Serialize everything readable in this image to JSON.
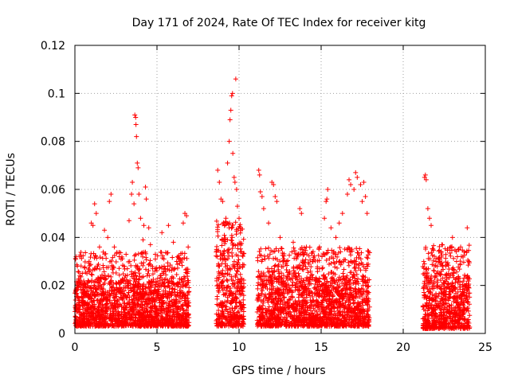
{
  "chart_data": {
    "type": "scatter",
    "title": "Day 171 of 2024, Rate Of TEC Index for receiver kitg",
    "xlabel": "GPS time / hours",
    "ylabel": "ROTI / TECUs",
    "xlim": [
      0,
      25
    ],
    "ylim": [
      0,
      0.12
    ],
    "xticks": [
      0,
      5,
      10,
      15,
      20,
      25
    ],
    "xtick_labels": [
      "0",
      "5",
      "10",
      "15",
      "20",
      "25"
    ],
    "yticks": [
      0,
      0.02,
      0.04,
      0.06,
      0.08,
      0.1,
      0.12
    ],
    "ytick_labels": [
      "0",
      "0.02",
      "0.04",
      "0.06",
      "0.08",
      "0.1",
      "0.12"
    ],
    "grid": true,
    "marker": "plus",
    "color": "#ff0000",
    "series": [
      {
        "name": "ROTI",
        "points": [
          [
            0.05,
            0.031
          ],
          [
            0.15,
            0.028
          ],
          [
            0.3,
            0.024
          ],
          [
            0.5,
            0.018
          ],
          [
            0.8,
            0.022
          ],
          [
            1.0,
            0.046
          ],
          [
            1.1,
            0.045
          ],
          [
            1.2,
            0.054
          ],
          [
            1.3,
            0.05
          ],
          [
            1.5,
            0.036
          ],
          [
            1.8,
            0.043
          ],
          [
            2.0,
            0.04
          ],
          [
            2.1,
            0.055
          ],
          [
            2.2,
            0.058
          ],
          [
            2.4,
            0.036
          ],
          [
            2.7,
            0.032
          ],
          [
            3.0,
            0.028
          ],
          [
            3.3,
            0.047
          ],
          [
            3.45,
            0.058
          ],
          [
            3.5,
            0.063
          ],
          [
            3.6,
            0.054
          ],
          [
            3.65,
            0.091
          ],
          [
            3.7,
            0.09
          ],
          [
            3.72,
            0.087
          ],
          [
            3.75,
            0.082
          ],
          [
            3.8,
            0.071
          ],
          [
            3.85,
            0.069
          ],
          [
            3.9,
            0.058
          ],
          [
            4.0,
            0.048
          ],
          [
            4.15,
            0.039
          ],
          [
            4.2,
            0.045
          ],
          [
            4.3,
            0.061
          ],
          [
            4.35,
            0.056
          ],
          [
            4.5,
            0.044
          ],
          [
            4.6,
            0.037
          ],
          [
            4.9,
            0.033
          ],
          [
            5.3,
            0.042
          ],
          [
            5.7,
            0.045
          ],
          [
            6.0,
            0.038
          ],
          [
            6.2,
            0.03
          ],
          [
            6.6,
            0.046
          ],
          [
            6.7,
            0.05
          ],
          [
            6.8,
            0.049
          ],
          [
            6.9,
            0.036
          ],
          [
            8.7,
            0.068
          ],
          [
            8.8,
            0.063
          ],
          [
            8.9,
            0.056
          ],
          [
            9.0,
            0.055
          ],
          [
            9.2,
            0.048
          ],
          [
            9.3,
            0.071
          ],
          [
            9.4,
            0.08
          ],
          [
            9.45,
            0.089
          ],
          [
            9.5,
            0.093
          ],
          [
            9.55,
            0.099
          ],
          [
            9.6,
            0.1
          ],
          [
            9.62,
            0.075
          ],
          [
            9.7,
            0.065
          ],
          [
            9.75,
            0.063
          ],
          [
            9.8,
            0.106
          ],
          [
            9.85,
            0.06
          ],
          [
            9.9,
            0.053
          ],
          [
            10.0,
            0.048
          ],
          [
            10.1,
            0.043
          ],
          [
            11.2,
            0.068
          ],
          [
            11.25,
            0.066
          ],
          [
            11.3,
            0.059
          ],
          [
            11.4,
            0.057
          ],
          [
            11.5,
            0.052
          ],
          [
            11.8,
            0.046
          ],
          [
            12.0,
            0.063
          ],
          [
            12.1,
            0.062
          ],
          [
            12.2,
            0.057
          ],
          [
            12.3,
            0.055
          ],
          [
            12.5,
            0.04
          ],
          [
            12.9,
            0.03
          ],
          [
            13.3,
            0.038
          ],
          [
            13.7,
            0.052
          ],
          [
            13.8,
            0.05
          ],
          [
            14.1,
            0.036
          ],
          [
            14.5,
            0.03
          ],
          [
            14.9,
            0.036
          ],
          [
            15.2,
            0.048
          ],
          [
            15.3,
            0.055
          ],
          [
            15.35,
            0.056
          ],
          [
            15.4,
            0.06
          ],
          [
            15.6,
            0.044
          ],
          [
            15.9,
            0.04
          ],
          [
            16.1,
            0.046
          ],
          [
            16.3,
            0.05
          ],
          [
            16.6,
            0.058
          ],
          [
            16.7,
            0.064
          ],
          [
            16.8,
            0.062
          ],
          [
            17.0,
            0.06
          ],
          [
            17.1,
            0.067
          ],
          [
            17.2,
            0.065
          ],
          [
            17.4,
            0.062
          ],
          [
            17.5,
            0.055
          ],
          [
            17.6,
            0.063
          ],
          [
            17.7,
            0.057
          ],
          [
            17.8,
            0.05
          ],
          [
            21.3,
            0.065
          ],
          [
            21.35,
            0.066
          ],
          [
            21.4,
            0.064
          ],
          [
            21.5,
            0.052
          ],
          [
            21.6,
            0.048
          ],
          [
            21.7,
            0.045
          ],
          [
            22.0,
            0.03
          ],
          [
            22.3,
            0.034
          ],
          [
            22.6,
            0.028
          ],
          [
            22.9,
            0.036
          ],
          [
            23.0,
            0.04
          ],
          [
            23.3,
            0.032
          ],
          [
            23.5,
            0.036
          ],
          [
            23.7,
            0.034
          ],
          [
            23.9,
            0.044
          ],
          [
            24.0,
            0.03
          ]
        ],
        "dense_bands": [
          {
            "x": [
              0.0,
              6.95
            ],
            "y": [
              0.003,
              0.022
            ]
          },
          {
            "x": [
              8.6,
              10.3
            ],
            "y": [
              0.003,
              0.035
            ]
          },
          {
            "x": [
              11.1,
              17.95
            ],
            "y": [
              0.003,
              0.024
            ]
          },
          {
            "x": [
              21.2,
              24.05
            ],
            "y": [
              0.002,
              0.025
            ]
          }
        ]
      }
    ]
  }
}
